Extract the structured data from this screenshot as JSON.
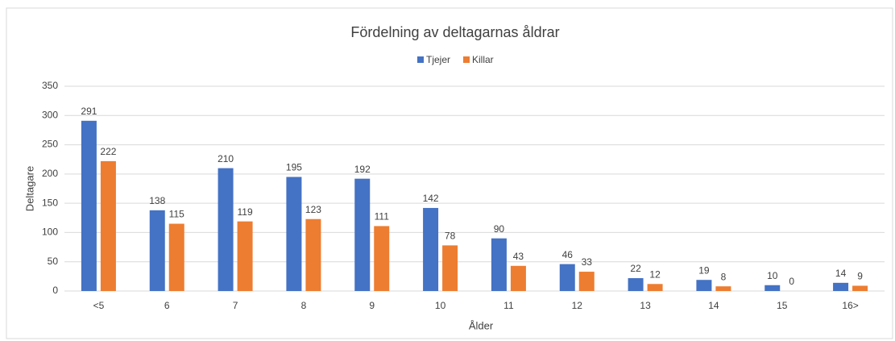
{
  "chart_data": {
    "type": "bar",
    "title": "Fördelning av deltagarnas åldrar",
    "x_label": "Ålder",
    "y_label": "Deltagare",
    "categories": [
      "<5",
      "6",
      "7",
      "8",
      "9",
      "10",
      "11",
      "12",
      "13",
      "14",
      "15",
      "16>"
    ],
    "series": [
      {
        "name": "Tjejer",
        "color": "#4472c4",
        "values": [
          291,
          138,
          210,
          195,
          192,
          142,
          90,
          46,
          22,
          19,
          10,
          14
        ]
      },
      {
        "name": "Killar",
        "color": "#ed7d31",
        "values": [
          222,
          115,
          119,
          123,
          111,
          78,
          43,
          33,
          12,
          8,
          0,
          9
        ]
      }
    ],
    "ylim": [
      0,
      350
    ],
    "yticks": [
      0,
      50,
      100,
      150,
      200,
      250,
      300,
      350
    ],
    "grid": true,
    "legend": "top"
  }
}
